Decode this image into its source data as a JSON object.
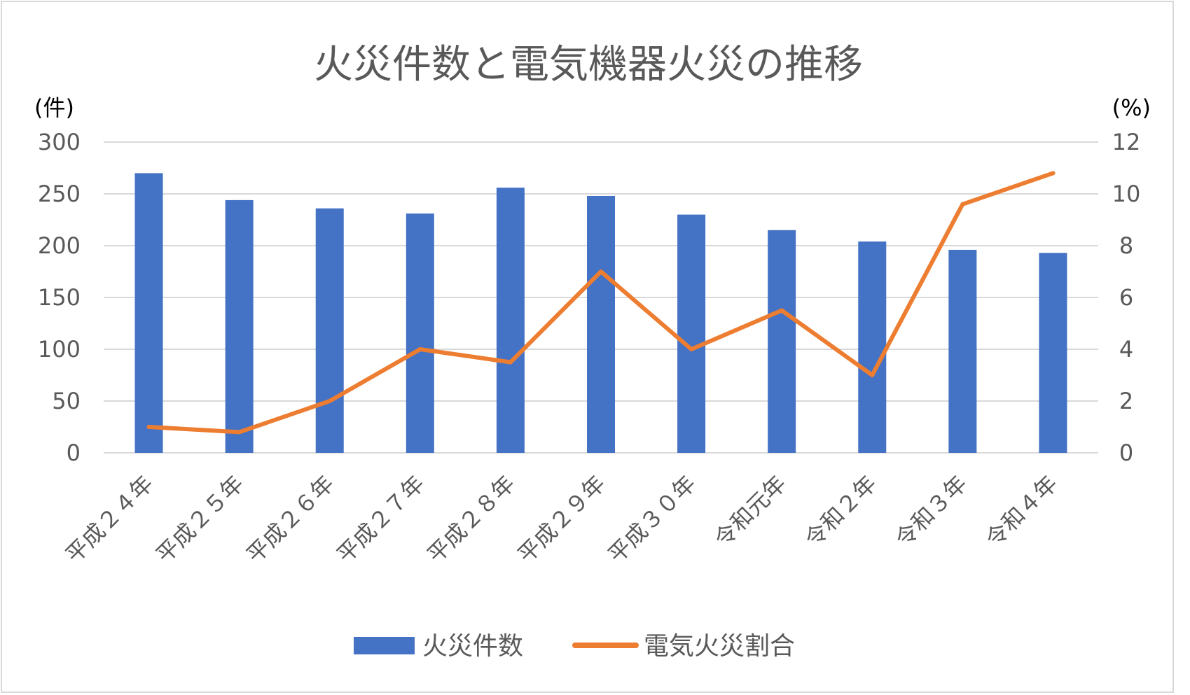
{
  "chart_data": {
    "type": "bar",
    "title": "火災件数と電気機器火災の推移",
    "y_unit_left": "(件)",
    "y_unit_right": "(%)",
    "categories": [
      "平成２４年",
      "平成２５年",
      "平成２６年",
      "平成２７年",
      "平成２８年",
      "平成２９年",
      "平成３０年",
      "令和元年",
      "令和２年",
      "令和３年",
      "令和４年"
    ],
    "ylim_left": [
      0,
      300
    ],
    "yticks_left": [
      "0",
      "50",
      "100",
      "150",
      "200",
      "250",
      "300"
    ],
    "ylim_right": [
      0,
      12
    ],
    "yticks_right": [
      "0",
      "2",
      "4",
      "6",
      "8",
      "10",
      "12"
    ],
    "grid": true,
    "legend_position": "bottom",
    "series": [
      {
        "name": "火災件数",
        "type": "bar",
        "axis": "left",
        "color": "#4472c4",
        "values": [
          270,
          244,
          236,
          231,
          256,
          248,
          230,
          215,
          204,
          196,
          193
        ]
      },
      {
        "name": "電気火災割合",
        "type": "line",
        "axis": "right",
        "color": "#ed7d31",
        "values": [
          1.0,
          0.8,
          2.0,
          4.0,
          3.5,
          7.0,
          4.0,
          5.5,
          3.0,
          9.6,
          10.8
        ]
      }
    ]
  }
}
